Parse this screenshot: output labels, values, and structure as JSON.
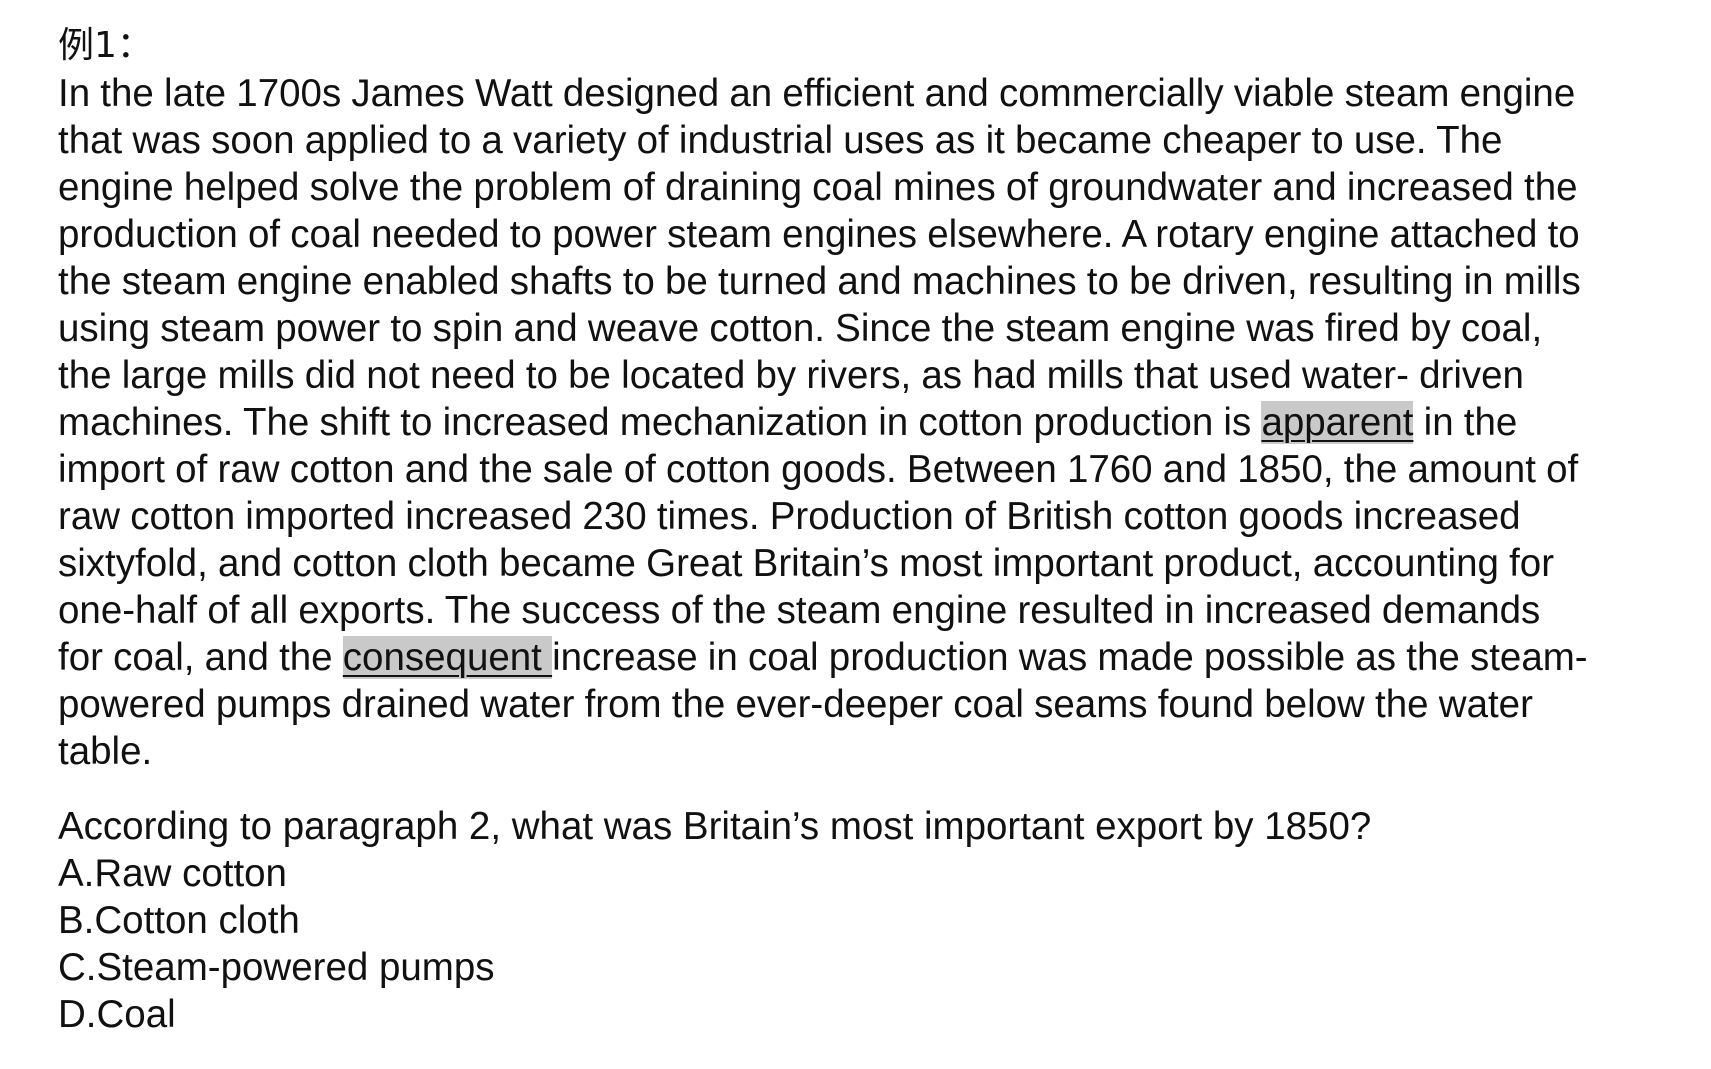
{
  "example_label": "例1：",
  "passage": {
    "lines": [
      "In the late 1700s James Watt designed an efficient and commercially viable steam engine",
      "that was soon applied to a variety of industrial uses as it became cheaper to use. The",
      "engine helped solve the problem of draining coal mines of groundwater and increased the",
      "production of coal needed to power steam engines elsewhere. A rotary engine attached to",
      "the steam engine enabled shafts to be turned and machines to be driven, resulting in mills",
      "using steam power to spin and weave cotton. Since the steam engine was fired by coal,",
      "the large mills did not need to be located by rivers, as had mills that used water- driven"
    ],
    "line8_pre": "machines. The shift to increased mechanization in cotton production is ",
    "line8_hl": "apparent",
    "line8_post": " in the",
    "lines_mid": [
      "import of raw cotton and the sale of cotton goods. Between 1760 and 1850, the amount of",
      "raw cotton imported increased 230 times. Production of British cotton goods increased",
      "sixtyfold, and cotton cloth became Great Britain’s most important product, accounting for",
      "one-half of all exports. The success of the steam engine resulted in increased demands"
    ],
    "line13_pre": "for coal, and the ",
    "line13_hl": "consequent ",
    "line13_post": "increase in coal production was made possible as the steam-",
    "lines_end": [
      "powered pumps drained water from the ever-deeper coal seams found below the water",
      "table."
    ]
  },
  "question": {
    "text": "According to paragraph 2, what was Britain’s most important export by 1850?",
    "options": [
      "A.Raw cotton",
      "B.Cotton cloth",
      "C.Steam-powered pumps",
      "D.Coal"
    ]
  }
}
